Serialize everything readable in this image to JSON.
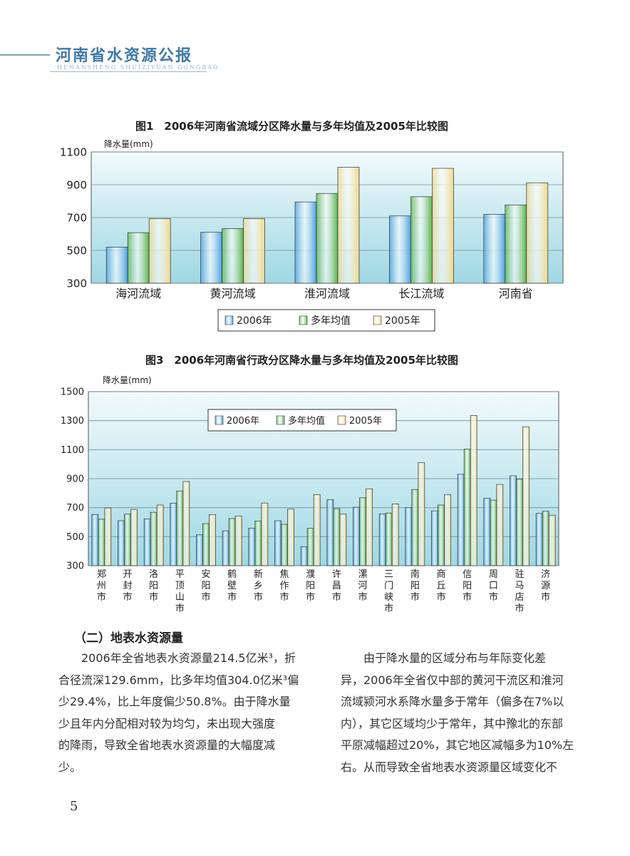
{
  "header": {
    "title": "河南省水资源公报",
    "subtitle": "HENANSHENG SHUIZIYUAN GONGBAO"
  },
  "colors": {
    "s2006": "#4a9fe0",
    "savg": "#58b24a",
    "s2005": "#eed88a",
    "plotTop": "#f2fafc",
    "plotBottom": "#9fd8e4"
  },
  "chart_data": [
    {
      "type": "bar",
      "title": "图1　2006年河南省流域分区降水量与多年均值及2005年比较图",
      "ylabel": "降水量(mm)",
      "categories": [
        "海河流域",
        "黄河流域",
        "淮河流域",
        "长江流域",
        "河南省"
      ],
      "ylim": [
        300,
        1100
      ],
      "yticks": [
        "300",
        "500",
        "700",
        "900",
        "1100"
      ],
      "legend_position": "bottom-center",
      "series": [
        {
          "name": "2006年",
          "values": [
            520,
            610,
            795,
            710,
            720
          ]
        },
        {
          "name": "多年均值",
          "values": [
            608,
            633,
            847,
            827,
            777
          ]
        },
        {
          "name": "2005年",
          "values": [
            694,
            694,
            1007,
            1000,
            912
          ]
        }
      ]
    },
    {
      "type": "bar",
      "title": "图3　2006年河南省行政分区降水量与多年均值及2005年比较图",
      "ylabel": "降水量(mm)",
      "categories": [
        "郑州市",
        "开封市",
        "洛阳市",
        "平顶山市",
        "安阳市",
        "鹤壁市",
        "新乡市",
        "焦作市",
        "濮阳市",
        "许昌市",
        "漯河市",
        "三门峡市",
        "南阳市",
        "商丘市",
        "信阳市",
        "周口市",
        "驻马店市",
        "济源市"
      ],
      "ylim": [
        300,
        1500
      ],
      "yticks": [
        "300",
        "500",
        "700",
        "900",
        "1100",
        "1300",
        "1500"
      ],
      "legend_position": "top-center",
      "series": [
        {
          "name": "2006年",
          "values": [
            653,
            610,
            623,
            730,
            512,
            540,
            558,
            610,
            430,
            755,
            703,
            657,
            700,
            678,
            930,
            765,
            920,
            660
          ]
        },
        {
          "name": "多年均值",
          "values": [
            620,
            655,
            668,
            815,
            590,
            625,
            608,
            585,
            557,
            693,
            768,
            663,
            825,
            718,
            1103,
            752,
            896,
            675
          ]
        },
        {
          "name": "2005年",
          "values": [
            698,
            688,
            718,
            880,
            652,
            642,
            732,
            690,
            790,
            655,
            830,
            725,
            1010,
            790,
            1335,
            860,
            1258,
            648
          ]
        }
      ]
    }
  ],
  "section": {
    "heading": "（二）地表水资源量",
    "left_lines": [
      "2006年全省地表水资源量214.5亿米³，折",
      "合径流深129.6mm，比多年均值304.0亿米³偏",
      "少29.4%，比上年度偏少50.8%。由于降水量",
      "少且年内分配相对较为均匀，未出现大强度",
      "的降雨，导致全省地表水资源量的大幅度减",
      "少。"
    ],
    "right_lines": [
      "由于降水量的区域分布与年际变化差",
      "异，2006年全省仅中部的黄河干流区和淮河",
      "流域颍河水系降水量多于常年（偏多在7%以",
      "内），其它区域均少于常年，其中豫北的东部",
      "平原减幅超过20%，其它地区减幅多为10%左",
      "右。从而导致全省地表水资源量区域变化不"
    ]
  },
  "page_number": "5"
}
